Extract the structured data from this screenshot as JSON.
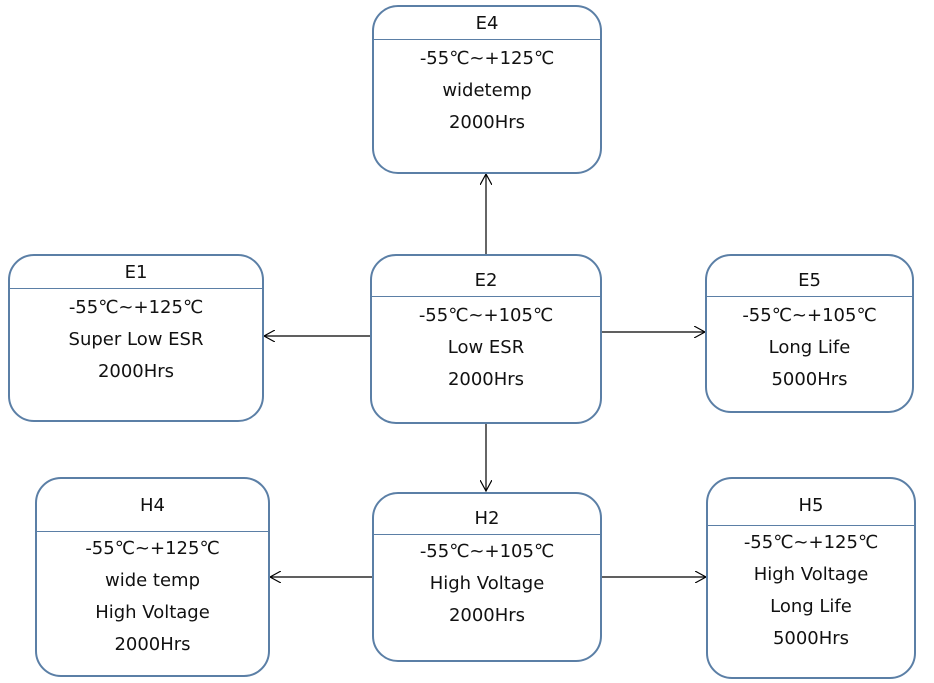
{
  "nodes": {
    "e4": {
      "title": "E4",
      "lines": [
        "-55℃~+125℃",
        "widetemp",
        "2000Hrs"
      ]
    },
    "e1": {
      "title": "E1",
      "lines": [
        "-55℃~+125℃",
        "Super Low ESR",
        "2000Hrs"
      ]
    },
    "e2": {
      "title": "E2",
      "lines": [
        "-55℃~+105℃",
        "Low ESR",
        "2000Hrs"
      ]
    },
    "e5": {
      "title": "E5",
      "lines": [
        "-55℃~+105℃",
        "Long Life",
        "5000Hrs"
      ]
    },
    "h4": {
      "title": "H4",
      "lines": [
        "-55℃~+125℃",
        "wide temp",
        "High Voltage",
        "2000Hrs"
      ]
    },
    "h2": {
      "title": "H2",
      "lines": [
        "-55℃~+105℃",
        "High Voltage",
        "2000Hrs"
      ]
    },
    "h5": {
      "title": "H5",
      "lines": [
        "-55℃~+125℃",
        "High Voltage",
        "Long Life",
        "5000Hrs"
      ]
    }
  },
  "colors": {
    "border": "#5b7fa6",
    "arrow": "#000000",
    "text": "#111111"
  }
}
